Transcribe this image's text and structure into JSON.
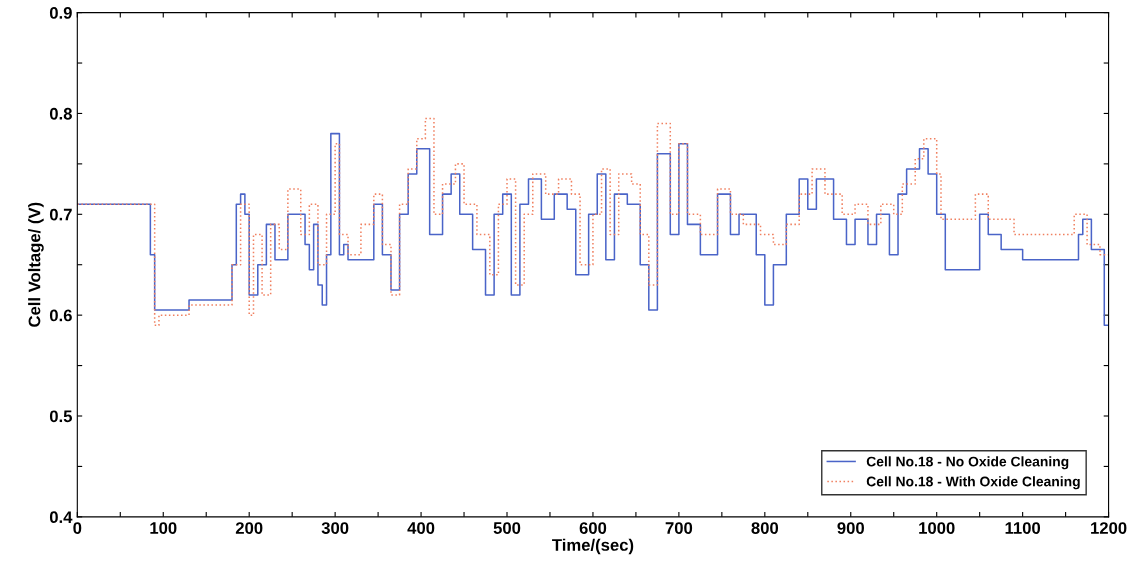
{
  "chart_data": {
    "type": "step",
    "xlabel": "Time/(sec)",
    "ylabel": "Cell Voltage/ (V)",
    "xlim": [
      0,
      1200
    ],
    "ylim": [
      0.4,
      0.9
    ],
    "xticks": [
      0,
      {
        "value": 50,
        "label": null
      },
      100,
      {
        "value": 150,
        "label": null
      },
      200,
      {
        "value": 250,
        "label": null
      },
      300,
      {
        "value": 350,
        "label": null
      },
      400,
      {
        "value": 450,
        "label": null
      },
      500,
      {
        "value": 550,
        "label": null
      },
      600,
      {
        "value": 650,
        "label": null
      },
      700,
      {
        "value": 750,
        "label": null
      },
      800,
      {
        "value": 850,
        "label": null
      },
      900,
      {
        "value": 950,
        "label": null
      },
      1000,
      {
        "value": 1050,
        "label": null
      },
      1100,
      {
        "value": 1150,
        "label": null
      },
      1200
    ],
    "yticks": [
      0.4,
      {
        "value": 0.45,
        "label": null
      },
      0.5,
      {
        "value": 0.55,
        "label": null
      },
      0.6,
      {
        "value": 0.65,
        "label": null
      },
      0.7,
      {
        "value": 0.75,
        "label": null
      },
      0.8,
      {
        "value": 0.85,
        "label": null
      },
      0.9
    ],
    "grid": false,
    "legend": "bottom right",
    "series": [
      {
        "name": "Cell No.18 - No Oxide Cleaning",
        "color": "#4a64c8",
        "line_style": "solid",
        "x": [
          0,
          85,
          90,
          130,
          180,
          185,
          190,
          195,
          200,
          210,
          220,
          230,
          245,
          265,
          270,
          275,
          280,
          285,
          290,
          295,
          305,
          310,
          315,
          345,
          355,
          365,
          375,
          385,
          395,
          410,
          425,
          435,
          445,
          460,
          475,
          485,
          495,
          505,
          515,
          525,
          540,
          555,
          570,
          580,
          595,
          605,
          615,
          625,
          640,
          655,
          665,
          675,
          690,
          700,
          710,
          725,
          745,
          760,
          770,
          790,
          800,
          810,
          825,
          840,
          850,
          860,
          880,
          895,
          905,
          920,
          930,
          945,
          955,
          965,
          980,
          990,
          1000,
          1010,
          1050,
          1060,
          1075,
          1100,
          1165,
          1170,
          1180,
          1195,
          1200
        ],
        "values": [
          0.71,
          0.66,
          0.605,
          0.615,
          0.65,
          0.71,
          0.72,
          0.7,
          0.62,
          0.65,
          0.69,
          0.655,
          0.7,
          0.67,
          0.645,
          0.69,
          0.63,
          0.61,
          0.66,
          0.78,
          0.66,
          0.67,
          0.655,
          0.71,
          0.66,
          0.625,
          0.7,
          0.74,
          0.765,
          0.68,
          0.72,
          0.74,
          0.7,
          0.665,
          0.62,
          0.7,
          0.72,
          0.62,
          0.71,
          0.735,
          0.695,
          0.72,
          0.705,
          0.64,
          0.7,
          0.74,
          0.655,
          0.72,
          0.71,
          0.65,
          0.605,
          0.76,
          0.68,
          0.77,
          0.69,
          0.66,
          0.72,
          0.68,
          0.7,
          0.66,
          0.61,
          0.65,
          0.7,
          0.735,
          0.705,
          0.735,
          0.695,
          0.67,
          0.695,
          0.67,
          0.7,
          0.66,
          0.72,
          0.745,
          0.765,
          0.74,
          0.7,
          0.645,
          0.7,
          0.68,
          0.665,
          0.655,
          0.68,
          0.695,
          0.665,
          0.59,
          0.59
        ]
      },
      {
        "name": "Cell No.18 - With Oxide Cleaning",
        "color": "#f08060",
        "line_style": "dotted",
        "x": [
          0,
          90,
          95,
          130,
          180,
          190,
          200,
          205,
          215,
          225,
          235,
          245,
          260,
          270,
          280,
          290,
          300,
          305,
          315,
          330,
          345,
          355,
          365,
          375,
          385,
          395,
          405,
          415,
          425,
          440,
          450,
          465,
          480,
          490,
          500,
          510,
          520,
          530,
          545,
          560,
          575,
          585,
          600,
          610,
          620,
          630,
          645,
          655,
          665,
          675,
          690,
          700,
          710,
          725,
          745,
          760,
          775,
          795,
          810,
          825,
          840,
          855,
          870,
          890,
          905,
          920,
          935,
          950,
          960,
          975,
          985,
          1000,
          1005,
          1045,
          1060,
          1090,
          1160,
          1175,
          1190,
          1200
        ],
        "values": [
          0.71,
          0.59,
          0.6,
          0.61,
          0.65,
          0.71,
          0.6,
          0.68,
          0.62,
          0.69,
          0.665,
          0.725,
          0.68,
          0.71,
          0.65,
          0.7,
          0.77,
          0.68,
          0.66,
          0.69,
          0.72,
          0.67,
          0.62,
          0.71,
          0.745,
          0.775,
          0.795,
          0.7,
          0.73,
          0.75,
          0.71,
          0.68,
          0.64,
          0.71,
          0.735,
          0.63,
          0.7,
          0.74,
          0.72,
          0.735,
          0.72,
          0.65,
          0.7,
          0.745,
          0.68,
          0.74,
          0.73,
          0.68,
          0.63,
          0.79,
          0.7,
          0.77,
          0.7,
          0.68,
          0.725,
          0.7,
          0.69,
          0.68,
          0.67,
          0.69,
          0.72,
          0.745,
          0.72,
          0.7,
          0.71,
          0.69,
          0.71,
          0.7,
          0.73,
          0.755,
          0.775,
          0.74,
          0.695,
          0.72,
          0.695,
          0.68,
          0.7,
          0.67,
          0.66,
          0.66
        ]
      }
    ]
  }
}
